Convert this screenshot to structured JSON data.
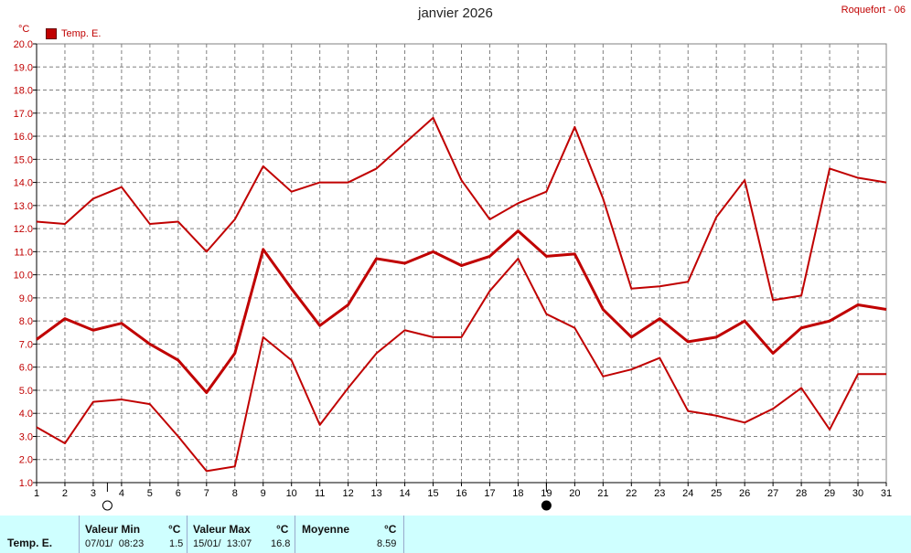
{
  "header": {
    "title": "janvier 2026",
    "station": "Roquefort - 06",
    "unit": "°C",
    "legend_label": "Temp. E."
  },
  "colors": {
    "series": "#c00000",
    "grid": "#808080",
    "axis": "#000000",
    "footer_bg": "#cfffff"
  },
  "footer": {
    "row_label": "Temp. E.",
    "min": {
      "header": "Valeur Min",
      "unit": "°C",
      "time": "07/01/  08:23",
      "value": "1.5"
    },
    "max": {
      "header": "Valeur Max",
      "unit": "°C",
      "time": "15/01/  13:07",
      "value": "16.8"
    },
    "avg": {
      "header": "Moyenne",
      "unit": "°C",
      "value": "8.59"
    }
  },
  "moon_phases": [
    {
      "day": 3.5,
      "phase": "full-moon"
    },
    {
      "day": 19,
      "phase": "new-moon"
    }
  ],
  "chart_data": {
    "type": "line",
    "title": "janvier 2026",
    "ylabel": "°C",
    "ylim": [
      1.0,
      20.0
    ],
    "xlim": [
      1,
      31
    ],
    "grid": true,
    "legend": "top-left",
    "x": [
      1,
      2,
      3,
      4,
      5,
      6,
      7,
      8,
      9,
      10,
      11,
      12,
      13,
      14,
      15,
      16,
      17,
      18,
      19,
      20,
      21,
      22,
      23,
      24,
      25,
      26,
      27,
      28,
      29,
      30,
      31
    ],
    "x_tick_labels": [
      "1",
      "2",
      "3",
      "4",
      "5",
      "6",
      "7",
      "8",
      "9",
      "10",
      "11",
      "12",
      "13",
      "14",
      "15",
      "16",
      "17",
      "18",
      "19",
      "20",
      "21",
      "22",
      "23",
      "24",
      "25",
      "26",
      "27",
      "28",
      "29",
      "30",
      "31"
    ],
    "y_tick_labels": [
      "1.0",
      "2.0",
      "3.0",
      "4.0",
      "5.0",
      "6.0",
      "7.0",
      "8.0",
      "9.0",
      "10.0",
      "11.0",
      "12.0",
      "13.0",
      "14.0",
      "15.0",
      "16.0",
      "17.0",
      "18.0",
      "19.0",
      "20.0"
    ],
    "series": [
      {
        "name": "Temp. E.",
        "role": "max",
        "values": [
          12.3,
          12.2,
          13.3,
          13.8,
          12.2,
          12.3,
          11.0,
          12.4,
          14.7,
          13.6,
          14.0,
          14.0,
          14.6,
          15.7,
          16.8,
          14.1,
          12.4,
          13.1,
          13.6,
          16.4,
          13.3,
          9.4,
          9.5,
          9.7,
          12.5,
          14.1,
          8.9,
          9.1,
          14.6,
          14.2,
          14.0
        ]
      },
      {
        "role": "mean",
        "values": [
          7.2,
          8.1,
          7.6,
          7.9,
          7.0,
          6.3,
          4.9,
          6.6,
          11.1,
          9.4,
          7.8,
          8.7,
          10.7,
          10.5,
          11.0,
          10.4,
          10.8,
          11.9,
          10.8,
          10.9,
          8.5,
          7.3,
          8.1,
          7.1,
          7.3,
          8.0,
          6.6,
          7.7,
          8.0,
          8.7,
          8.5
        ]
      },
      {
        "role": "min",
        "values": [
          3.4,
          2.7,
          4.5,
          4.6,
          4.4,
          3.0,
          1.5,
          1.7,
          7.3,
          6.3,
          3.5,
          5.1,
          6.6,
          7.6,
          7.3,
          7.3,
          9.3,
          10.7,
          8.3,
          7.7,
          5.6,
          5.9,
          6.4,
          4.1,
          3.9,
          3.6,
          4.2,
          5.1,
          3.3,
          5.7,
          5.7
        ]
      }
    ]
  }
}
